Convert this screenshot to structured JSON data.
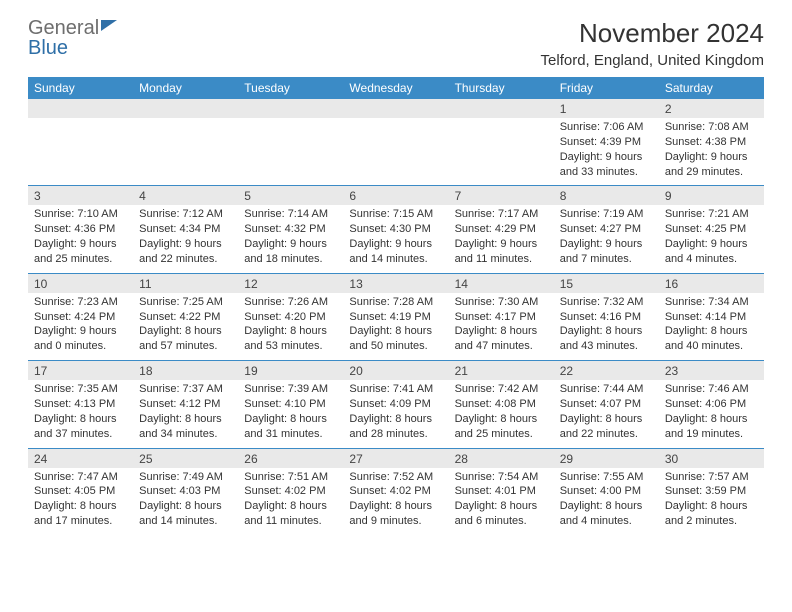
{
  "brand": {
    "part1": "General",
    "part2": "Blue"
  },
  "title": "November 2024",
  "location": "Telford, England, United Kingdom",
  "colors": {
    "header_bg": "#3b8bc6",
    "header_text": "#ffffff",
    "daynum_bg": "#e9e9e9",
    "sep": "#3b8bc6",
    "brand_gray": "#6e6e6e",
    "brand_blue": "#2f6fa7"
  },
  "dayNames": [
    "Sunday",
    "Monday",
    "Tuesday",
    "Wednesday",
    "Thursday",
    "Friday",
    "Saturday"
  ],
  "weeks": [
    [
      null,
      null,
      null,
      null,
      null,
      {
        "n": "1",
        "sr": "Sunrise: 7:06 AM",
        "ss": "Sunset: 4:39 PM",
        "d1": "Daylight: 9 hours",
        "d2": "and 33 minutes."
      },
      {
        "n": "2",
        "sr": "Sunrise: 7:08 AM",
        "ss": "Sunset: 4:38 PM",
        "d1": "Daylight: 9 hours",
        "d2": "and 29 minutes."
      }
    ],
    [
      {
        "n": "3",
        "sr": "Sunrise: 7:10 AM",
        "ss": "Sunset: 4:36 PM",
        "d1": "Daylight: 9 hours",
        "d2": "and 25 minutes."
      },
      {
        "n": "4",
        "sr": "Sunrise: 7:12 AM",
        "ss": "Sunset: 4:34 PM",
        "d1": "Daylight: 9 hours",
        "d2": "and 22 minutes."
      },
      {
        "n": "5",
        "sr": "Sunrise: 7:14 AM",
        "ss": "Sunset: 4:32 PM",
        "d1": "Daylight: 9 hours",
        "d2": "and 18 minutes."
      },
      {
        "n": "6",
        "sr": "Sunrise: 7:15 AM",
        "ss": "Sunset: 4:30 PM",
        "d1": "Daylight: 9 hours",
        "d2": "and 14 minutes."
      },
      {
        "n": "7",
        "sr": "Sunrise: 7:17 AM",
        "ss": "Sunset: 4:29 PM",
        "d1": "Daylight: 9 hours",
        "d2": "and 11 minutes."
      },
      {
        "n": "8",
        "sr": "Sunrise: 7:19 AM",
        "ss": "Sunset: 4:27 PM",
        "d1": "Daylight: 9 hours",
        "d2": "and 7 minutes."
      },
      {
        "n": "9",
        "sr": "Sunrise: 7:21 AM",
        "ss": "Sunset: 4:25 PM",
        "d1": "Daylight: 9 hours",
        "d2": "and 4 minutes."
      }
    ],
    [
      {
        "n": "10",
        "sr": "Sunrise: 7:23 AM",
        "ss": "Sunset: 4:24 PM",
        "d1": "Daylight: 9 hours",
        "d2": "and 0 minutes."
      },
      {
        "n": "11",
        "sr": "Sunrise: 7:25 AM",
        "ss": "Sunset: 4:22 PM",
        "d1": "Daylight: 8 hours",
        "d2": "and 57 minutes."
      },
      {
        "n": "12",
        "sr": "Sunrise: 7:26 AM",
        "ss": "Sunset: 4:20 PM",
        "d1": "Daylight: 8 hours",
        "d2": "and 53 minutes."
      },
      {
        "n": "13",
        "sr": "Sunrise: 7:28 AM",
        "ss": "Sunset: 4:19 PM",
        "d1": "Daylight: 8 hours",
        "d2": "and 50 minutes."
      },
      {
        "n": "14",
        "sr": "Sunrise: 7:30 AM",
        "ss": "Sunset: 4:17 PM",
        "d1": "Daylight: 8 hours",
        "d2": "and 47 minutes."
      },
      {
        "n": "15",
        "sr": "Sunrise: 7:32 AM",
        "ss": "Sunset: 4:16 PM",
        "d1": "Daylight: 8 hours",
        "d2": "and 43 minutes."
      },
      {
        "n": "16",
        "sr": "Sunrise: 7:34 AM",
        "ss": "Sunset: 4:14 PM",
        "d1": "Daylight: 8 hours",
        "d2": "and 40 minutes."
      }
    ],
    [
      {
        "n": "17",
        "sr": "Sunrise: 7:35 AM",
        "ss": "Sunset: 4:13 PM",
        "d1": "Daylight: 8 hours",
        "d2": "and 37 minutes."
      },
      {
        "n": "18",
        "sr": "Sunrise: 7:37 AM",
        "ss": "Sunset: 4:12 PM",
        "d1": "Daylight: 8 hours",
        "d2": "and 34 minutes."
      },
      {
        "n": "19",
        "sr": "Sunrise: 7:39 AM",
        "ss": "Sunset: 4:10 PM",
        "d1": "Daylight: 8 hours",
        "d2": "and 31 minutes."
      },
      {
        "n": "20",
        "sr": "Sunrise: 7:41 AM",
        "ss": "Sunset: 4:09 PM",
        "d1": "Daylight: 8 hours",
        "d2": "and 28 minutes."
      },
      {
        "n": "21",
        "sr": "Sunrise: 7:42 AM",
        "ss": "Sunset: 4:08 PM",
        "d1": "Daylight: 8 hours",
        "d2": "and 25 minutes."
      },
      {
        "n": "22",
        "sr": "Sunrise: 7:44 AM",
        "ss": "Sunset: 4:07 PM",
        "d1": "Daylight: 8 hours",
        "d2": "and 22 minutes."
      },
      {
        "n": "23",
        "sr": "Sunrise: 7:46 AM",
        "ss": "Sunset: 4:06 PM",
        "d1": "Daylight: 8 hours",
        "d2": "and 19 minutes."
      }
    ],
    [
      {
        "n": "24",
        "sr": "Sunrise: 7:47 AM",
        "ss": "Sunset: 4:05 PM",
        "d1": "Daylight: 8 hours",
        "d2": "and 17 minutes."
      },
      {
        "n": "25",
        "sr": "Sunrise: 7:49 AM",
        "ss": "Sunset: 4:03 PM",
        "d1": "Daylight: 8 hours",
        "d2": "and 14 minutes."
      },
      {
        "n": "26",
        "sr": "Sunrise: 7:51 AM",
        "ss": "Sunset: 4:02 PM",
        "d1": "Daylight: 8 hours",
        "d2": "and 11 minutes."
      },
      {
        "n": "27",
        "sr": "Sunrise: 7:52 AM",
        "ss": "Sunset: 4:02 PM",
        "d1": "Daylight: 8 hours",
        "d2": "and 9 minutes."
      },
      {
        "n": "28",
        "sr": "Sunrise: 7:54 AM",
        "ss": "Sunset: 4:01 PM",
        "d1": "Daylight: 8 hours",
        "d2": "and 6 minutes."
      },
      {
        "n": "29",
        "sr": "Sunrise: 7:55 AM",
        "ss": "Sunset: 4:00 PM",
        "d1": "Daylight: 8 hours",
        "d2": "and 4 minutes."
      },
      {
        "n": "30",
        "sr": "Sunrise: 7:57 AM",
        "ss": "Sunset: 3:59 PM",
        "d1": "Daylight: 8 hours",
        "d2": "and 2 minutes."
      }
    ]
  ]
}
